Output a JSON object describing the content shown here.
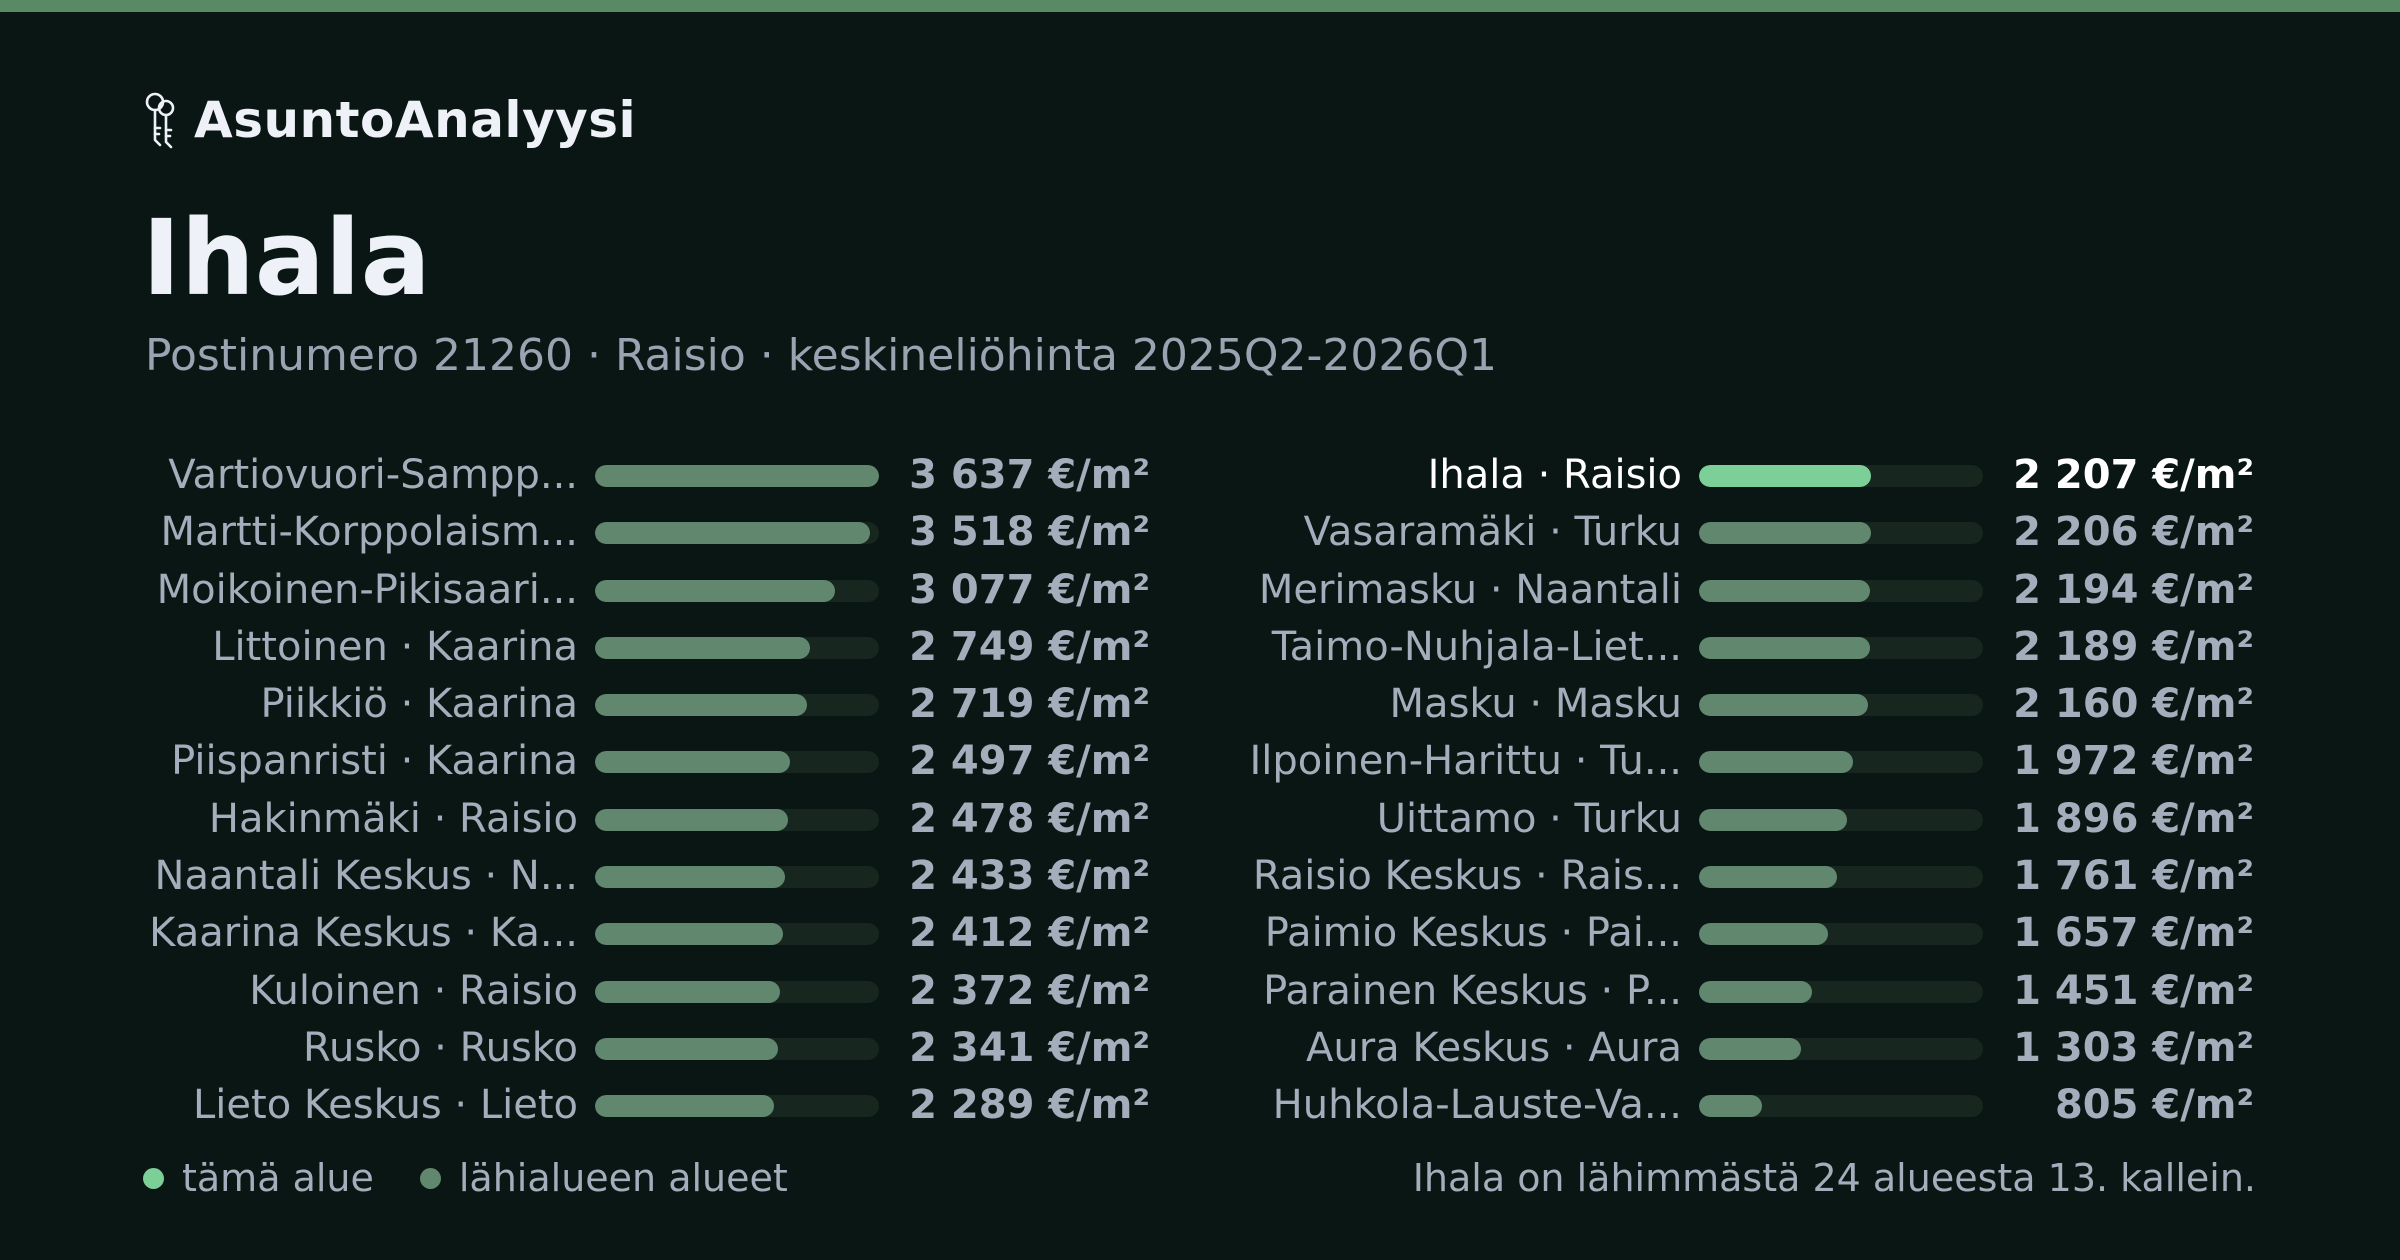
{
  "app": {
    "name": "AsuntoAnalyysi",
    "logo_icon": "keys-icon"
  },
  "title": "Ihala",
  "subtitle": "Postinumero 21260 · Raisio · keskineliöhinta 2025Q2-2026Q1",
  "legend": {
    "current_label": "tämä alue",
    "others_label": "lähialueen alueet"
  },
  "footnote": "Ihala on lähimmästä 24 alueesta 13. kallein.",
  "colors": {
    "background": "#0a1613",
    "accent": "#5a8a64",
    "current": "#7dcf98",
    "others": "#62876f",
    "track": "#17261f"
  },
  "chart_data": {
    "type": "bar",
    "orientation": "horizontal",
    "unit": "€/m²",
    "xlim": [
      0,
      3637
    ],
    "highlight": "Ihala · Raisio",
    "categories": [
      "Vartiovuori-Sampp...",
      "Martti-Korppolaism...",
      "Moikoinen-Pikisaari...",
      "Littoinen · Kaarina",
      "Piikkiö · Kaarina",
      "Piispanristi · Kaarina",
      "Hakinmäki · Raisio",
      "Naantali Keskus · N...",
      "Kaarina Keskus · Ka...",
      "Kuloinen · Raisio",
      "Rusko · Rusko",
      "Lieto Keskus · Lieto",
      "Ihala · Raisio",
      "Vasaramäki · Turku",
      "Merimasku · Naantali",
      "Taimo-Nuhjala-Liet...",
      "Masku · Masku",
      "Ilpoinen-Harittu · Tu...",
      "Uittamo · Turku",
      "Raisio Keskus · Rais...",
      "Paimio Keskus · Pai...",
      "Parainen Keskus · P...",
      "Aura Keskus · Aura",
      "Huhkola-Lauste-Va..."
    ],
    "values": [
      3637,
      3518,
      3077,
      2749,
      2719,
      2497,
      2478,
      2433,
      2412,
      2372,
      2341,
      2289,
      2207,
      2206,
      2194,
      2189,
      2160,
      1972,
      1896,
      1761,
      1657,
      1451,
      1303,
      805
    ],
    "value_labels": [
      "3 637 €/m²",
      "3 518 €/m²",
      "3 077 €/m²",
      "2 749 €/m²",
      "2 719 €/m²",
      "2 497 €/m²",
      "2 478 €/m²",
      "2 433 €/m²",
      "2 412 €/m²",
      "2 372 €/m²",
      "2 341 €/m²",
      "2 289 €/m²",
      "2 207 €/m²",
      "2 206 €/m²",
      "2 194 €/m²",
      "2 189 €/m²",
      "2 160 €/m²",
      "1 972 €/m²",
      "1 896 €/m²",
      "1 761 €/m²",
      "1 657 €/m²",
      "1 451 €/m²",
      "1 303 €/m²",
      "805 €/m²"
    ]
  }
}
